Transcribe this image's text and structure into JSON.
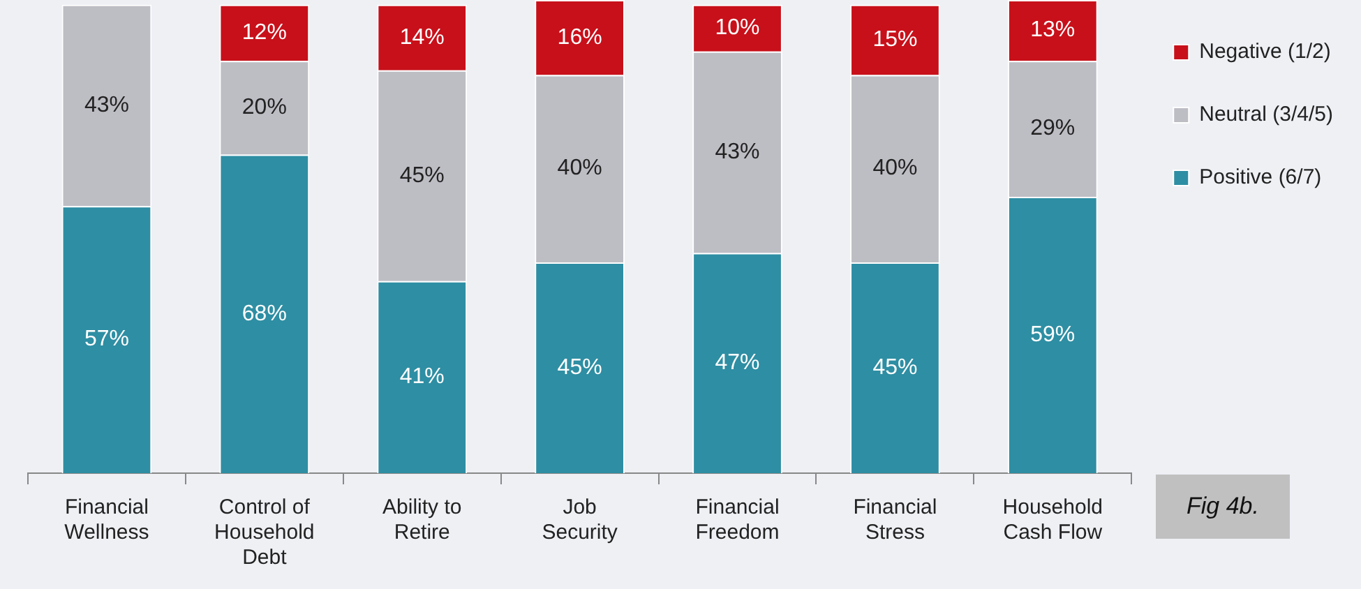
{
  "chart_data": {
    "type": "bar",
    "stacked": true,
    "categories": [
      "Financial Wellness",
      "Control of Household Debt",
      "Ability to Retire",
      "Job Security",
      "Financial Freedom",
      "Financial Stress",
      "Household Cash Flow"
    ],
    "series": [
      {
        "name": "Positive (6/7)",
        "color": "#2e8ea3",
        "values": [
          57,
          68,
          41,
          45,
          47,
          45,
          59
        ],
        "value_labels": [
          "57%",
          "68%",
          "41%",
          "45%",
          "47%",
          "45%",
          "59%"
        ]
      },
      {
        "name": "Neutral (3/4/5)",
        "color": "#bdbdc4",
        "values": [
          43,
          20,
          45,
          40,
          43,
          40,
          29
        ],
        "value_labels": [
          "43%",
          "20%",
          "45%",
          "40%",
          "43%",
          "40%",
          "29%"
        ]
      },
      {
        "name": "Negative (1/2)",
        "color": "#c8101a",
        "values": [
          null,
          12,
          14,
          16,
          10,
          15,
          13
        ],
        "value_labels": [
          null,
          "12%",
          "14%",
          "16%",
          "10%",
          "15%",
          "13%"
        ]
      }
    ],
    "ylim": [
      0,
      101
    ],
    "tick_labels": "x",
    "grid": false,
    "legend": "right",
    "annotations": [
      "Fig 4b."
    ]
  }
}
